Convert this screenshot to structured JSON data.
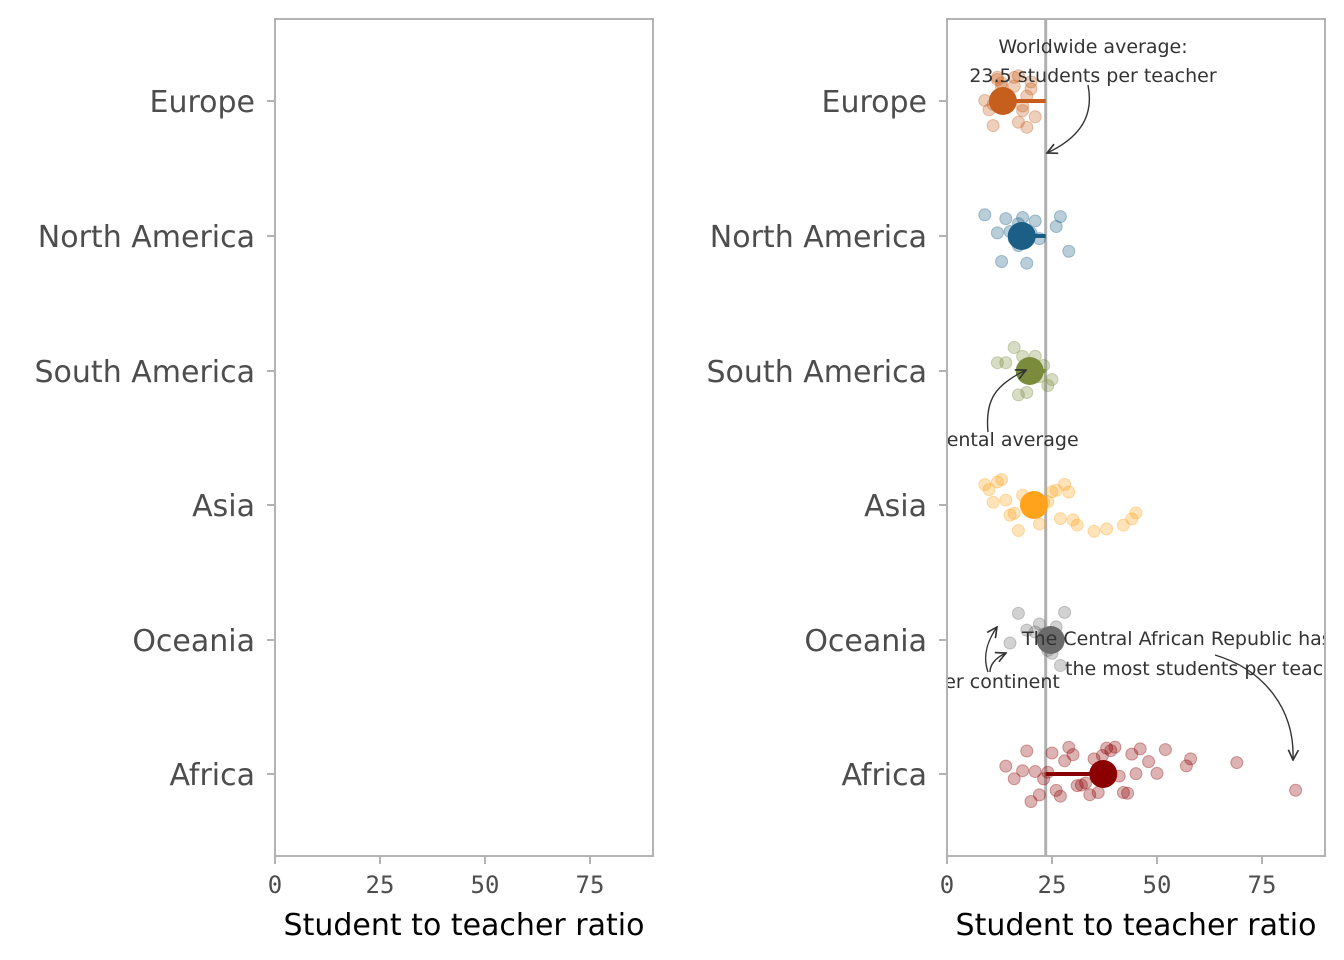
{
  "chart_data": [
    {
      "type": "scatter",
      "panel": "left",
      "categories": [
        "Europe",
        "North America",
        "South America",
        "Asia",
        "Oceania",
        "Africa"
      ],
      "xlabel": "Student to teacher ratio",
      "xlim": [
        0,
        90
      ],
      "xticks": [
        0,
        25,
        50,
        75
      ],
      "series": []
    },
    {
      "type": "scatter",
      "panel": "right",
      "categories": [
        "Europe",
        "North America",
        "South America",
        "Asia",
        "Oceania",
        "Africa"
      ],
      "xlabel": "Student to teacher ratio",
      "xlim": [
        0,
        90
      ],
      "xticks": [
        0,
        25,
        50,
        75
      ],
      "worldwide_average": 23.5,
      "series": [
        {
          "category": "Europe",
          "color": "#c65f1e",
          "mean": 13.3,
          "points": [
            9,
            11,
            12,
            13,
            14,
            15,
            16,
            17,
            18,
            19,
            20,
            21,
            10,
            12,
            14,
            16,
            18,
            20,
            12,
            15,
            13,
            17,
            11,
            19
          ]
        },
        {
          "category": "North America",
          "color": "#1b5e86",
          "mean": 17.8,
          "points": [
            9,
            12,
            13,
            14,
            15,
            16,
            17,
            17,
            18,
            19,
            20,
            21,
            22,
            26,
            27,
            29
          ]
        },
        {
          "category": "South America",
          "color": "#7a8b3c",
          "mean": 19.7,
          "points": [
            12,
            14,
            16,
            17,
            18,
            19,
            20,
            21,
            22,
            23,
            24,
            25
          ]
        },
        {
          "category": "Asia",
          "color": "#ffa21c",
          "mean": 20.7,
          "points": [
            9,
            10,
            11,
            12,
            13,
            14,
            15,
            16,
            17,
            18,
            19,
            20,
            21,
            22,
            23,
            24,
            25,
            26,
            27,
            28,
            29,
            30,
            31,
            35,
            38,
            42,
            44,
            45
          ]
        },
        {
          "category": "Oceania",
          "color": "#6b6b6b",
          "mean": 24.7,
          "points": [
            15,
            17,
            19,
            21,
            22,
            23,
            24,
            25,
            26,
            27,
            28
          ]
        },
        {
          "category": "Africa",
          "color": "#8b0000",
          "mean": 37.2,
          "points": [
            14,
            16,
            18,
            19,
            20,
            21,
            22,
            23,
            24,
            25,
            26,
            27,
            28,
            29,
            30,
            31,
            32,
            33,
            34,
            35,
            36,
            37,
            38,
            39,
            40,
            41,
            42,
            43,
            44,
            45,
            46,
            48,
            50,
            52,
            57,
            58,
            69,
            83
          ]
        }
      ],
      "annotations": [
        {
          "lines": [
            "Worldwide average:",
            "23.5 students per teacher"
          ]
        },
        {
          "lines": [
            "Continental average"
          ]
        },
        {
          "lines": [
            "Countries per continent"
          ]
        },
        {
          "lines": [
            "The Central African Republic has",
            "the most students per teacher"
          ]
        }
      ]
    }
  ]
}
